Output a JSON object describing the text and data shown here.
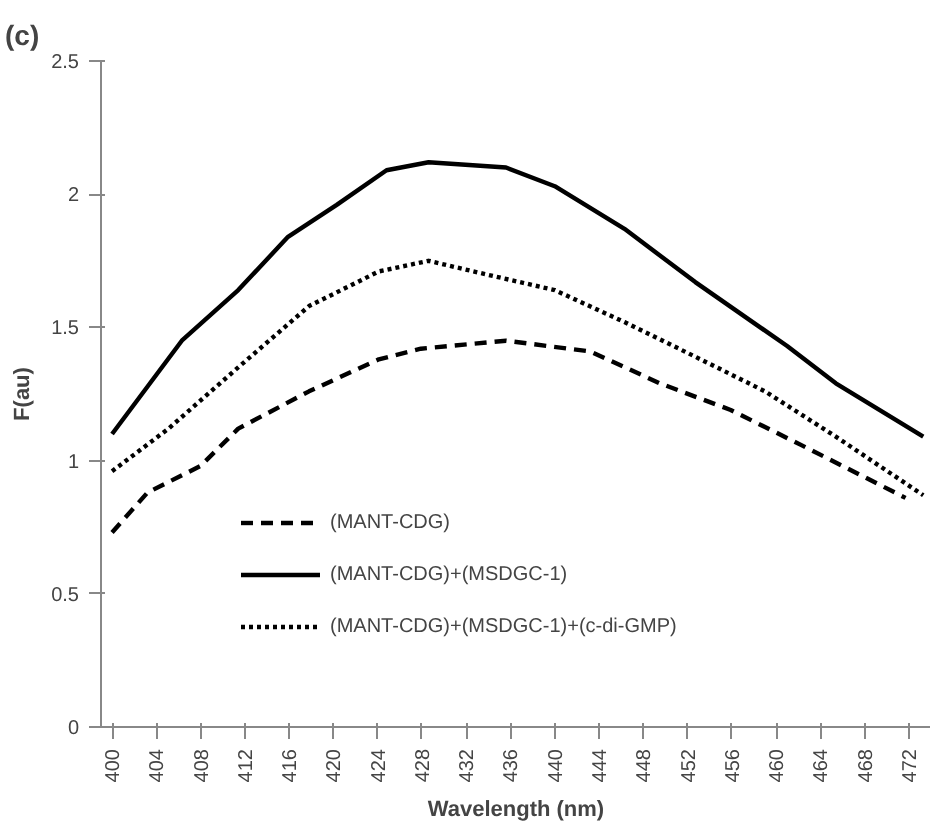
{
  "chart_data": {
    "type": "line",
    "xlabel": "Wavelength (nm)",
    "ylabel": "F(au)",
    "annotations": [
      "(c)"
    ],
    "xlim": [
      399,
      474
    ],
    "xticks": [
      400,
      404,
      408,
      412,
      416,
      420,
      424,
      428,
      432,
      436,
      440,
      444,
      448,
      452,
      456,
      460,
      464,
      468,
      472
    ],
    "ylim": [
      0,
      2.5
    ],
    "yticks": [
      0,
      0.5,
      1,
      1.5,
      2,
      2.5
    ],
    "grid": false,
    "legend": "bottom",
    "series": [
      {
        "name": "(MANT-CDG)",
        "color": "#000000",
        "line_style": "dashed",
        "x": [
          400,
          403.2,
          408,
          411.4,
          417.8,
          424.1,
          427.9,
          435.6,
          443.2,
          449.5,
          455.9,
          462.2,
          471.7
        ],
        "values": [
          0.73,
          0.88,
          0.98,
          1.12,
          1.26,
          1.38,
          1.42,
          1.45,
          1.41,
          1.29,
          1.19,
          1.06,
          0.86
        ]
      },
      {
        "name": "(MANT-CDG)+(MSDGC-1)",
        "color": "#000000",
        "line_style": "solid",
        "x": [
          400,
          406.3,
          411.4,
          415.9,
          420.3,
          424.8,
          428.6,
          435.6,
          440,
          446.3,
          452.7,
          461,
          465.4,
          473.3
        ],
        "values": [
          1.1,
          1.45,
          1.64,
          1.84,
          1.96,
          2.09,
          2.12,
          2.1,
          2.03,
          1.87,
          1.67,
          1.43,
          1.29,
          1.09
        ]
      },
      {
        "name": "(MANT-CDG)+(MSDGC-1)+(c-di-GMP)",
        "color": "#000000",
        "line_style": "dotted",
        "x": [
          400,
          405.1,
          411.4,
          417.8,
          424.1,
          428.6,
          433.7,
          440,
          446.3,
          452.7,
          459,
          465.4,
          473.3
        ],
        "values": [
          0.96,
          1.12,
          1.35,
          1.58,
          1.71,
          1.75,
          1.7,
          1.64,
          1.52,
          1.39,
          1.26,
          1.09,
          0.87
        ]
      }
    ]
  }
}
